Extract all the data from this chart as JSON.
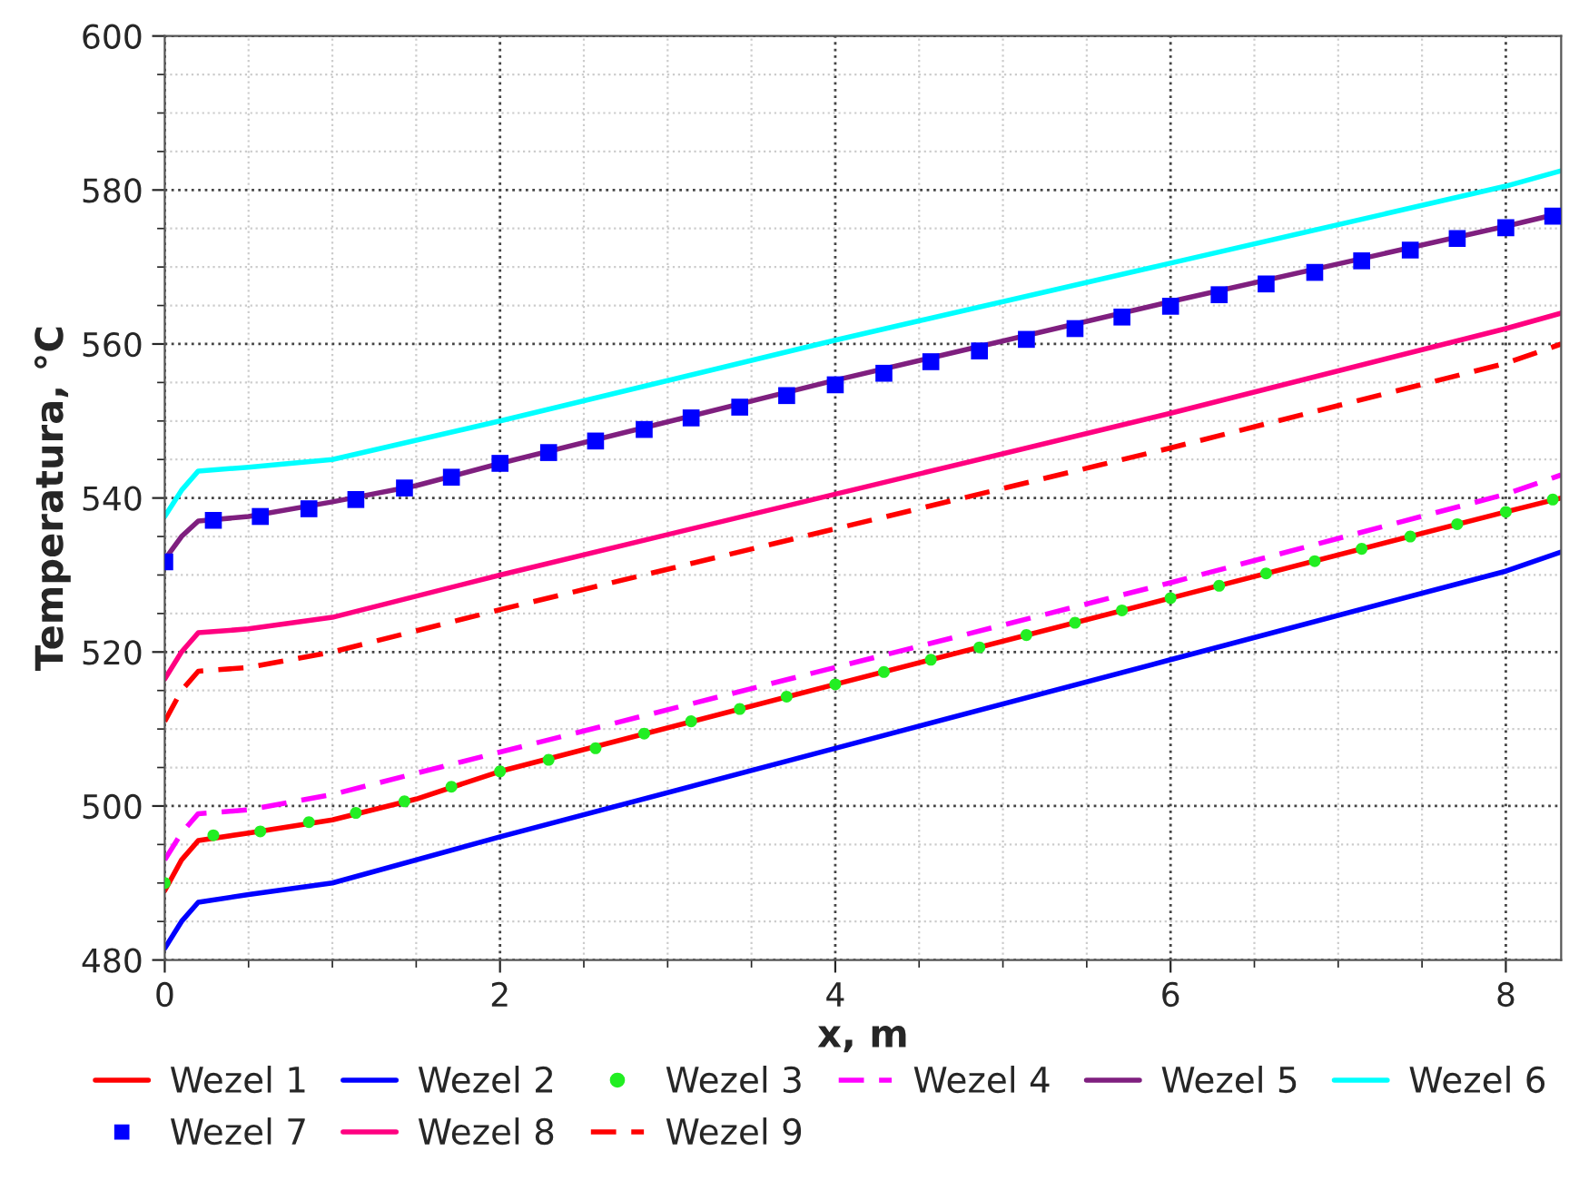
{
  "chart_data": {
    "type": "line",
    "xlabel": "x, m",
    "ylabel": "Temperatura, °C",
    "xlim": [
      0,
      8.33
    ],
    "ylim": [
      480,
      600
    ],
    "xticks": [
      0,
      2,
      4,
      6,
      8
    ],
    "yticks": [
      480,
      500,
      520,
      540,
      560,
      580,
      600
    ],
    "grid": true,
    "legend": "bottom",
    "series": [
      {
        "name": "Wezel 1",
        "color": "#ff0000",
        "line_style": "solid",
        "marker": "none",
        "x": [
          0,
          0.1,
          0.2,
          0.5,
          1,
          1.5,
          2,
          4,
          6,
          8,
          8.33
        ],
        "values": [
          489,
          493,
          495.5,
          496.5,
          498.2,
          500.9,
          504.5,
          515.8,
          527,
          538.2,
          540
        ]
      },
      {
        "name": "Wezel 2",
        "color": "#0000ff",
        "line_style": "solid",
        "marker": "none",
        "x": [
          0,
          0.1,
          0.2,
          0.5,
          1,
          2,
          4,
          6,
          8,
          8.33
        ],
        "values": [
          481.5,
          485,
          487.5,
          488.5,
          490,
          496,
          507.5,
          519,
          530.5,
          533
        ]
      },
      {
        "name": "Wezel 3",
        "type": "scatter",
        "color": "#22ee22",
        "marker": "circle",
        "x": [
          0,
          0.29,
          0.57,
          0.86,
          1.14,
          1.43,
          1.71,
          2.0,
          2.29,
          2.57,
          2.86,
          3.14,
          3.43,
          3.71,
          4.0,
          4.29,
          4.57,
          4.86,
          5.14,
          5.43,
          5.71,
          6.0,
          6.29,
          6.57,
          6.86,
          7.14,
          7.43,
          7.71,
          8.0,
          8.28
        ],
        "values": [
          490,
          496.2,
          496.7,
          497.9,
          499.1,
          500.6,
          502.5,
          504.5,
          506,
          507.5,
          509.4,
          511,
          512.6,
          514.2,
          515.8,
          517.4,
          519,
          520.6,
          522.2,
          523.8,
          525.4,
          527,
          528.6,
          530.2,
          531.8,
          533.4,
          535,
          536.6,
          538.2,
          539.8
        ]
      },
      {
        "name": "Wezel 4",
        "color": "#ff00ff",
        "line_style": "dashed",
        "marker": "none",
        "x": [
          0,
          0.1,
          0.2,
          0.5,
          1,
          2,
          4,
          6,
          8,
          8.33
        ],
        "values": [
          493,
          496.5,
          499,
          499.5,
          501.5,
          507,
          518,
          529,
          540.5,
          543
        ]
      },
      {
        "name": "Wezel 5",
        "color": "#7f1f7f",
        "line_style": "solid",
        "marker": "none",
        "x": [
          0,
          0.1,
          0.2,
          0.5,
          1,
          1.5,
          2,
          4,
          6,
          8,
          8.33
        ],
        "values": [
          532,
          535,
          537,
          537.6,
          539.5,
          541.6,
          544.5,
          555.3,
          565.5,
          575.3,
          577
        ]
      },
      {
        "name": "Wezel 6",
        "color": "#00ffff",
        "line_style": "solid",
        "marker": "none",
        "x": [
          0,
          0.1,
          0.2,
          0.5,
          1,
          2,
          4,
          6,
          8,
          8.33
        ],
        "values": [
          537.6,
          541,
          543.5,
          544,
          545,
          550,
          560.5,
          570.5,
          580.5,
          582.5
        ]
      },
      {
        "name": "Wezel 7",
        "type": "scatter",
        "color": "#0000ff",
        "marker": "square",
        "x": [
          0,
          0.29,
          0.57,
          0.86,
          1.14,
          1.43,
          1.71,
          2.0,
          2.29,
          2.57,
          2.86,
          3.14,
          3.43,
          3.71,
          4.0,
          4.29,
          4.57,
          4.86,
          5.14,
          5.43,
          5.71,
          6.0,
          6.29,
          6.57,
          6.86,
          7.14,
          7.43,
          7.71,
          8.0,
          8.28
        ],
        "values": [
          531.7,
          537.1,
          537.6,
          538.6,
          539.8,
          541.3,
          542.7,
          544.5,
          545.9,
          547.4,
          548.9,
          550.4,
          551.8,
          553.3,
          554.7,
          556.2,
          557.7,
          559.1,
          560.6,
          562.0,
          563.5,
          564.9,
          566.4,
          567.8,
          569.3,
          570.8,
          572.2,
          573.7,
          575.1,
          576.6
        ]
      },
      {
        "name": "Wezel 8",
        "color": "#ff0080",
        "line_style": "solid",
        "marker": "none",
        "x": [
          0,
          0.1,
          0.2,
          0.5,
          1,
          2,
          4,
          6,
          8,
          8.33
        ],
        "values": [
          516.5,
          520,
          522.5,
          523,
          524.5,
          530,
          540.5,
          551,
          562,
          564
        ]
      },
      {
        "name": "Wezel 9",
        "color": "#ff0000",
        "line_style": "dashed",
        "marker": "none",
        "x": [
          0,
          0.1,
          0.2,
          0.5,
          1,
          2,
          4,
          6,
          8,
          8.33
        ],
        "values": [
          511,
          515,
          517.5,
          518,
          520,
          525.5,
          536,
          546.5,
          557.5,
          560
        ]
      }
    ]
  }
}
